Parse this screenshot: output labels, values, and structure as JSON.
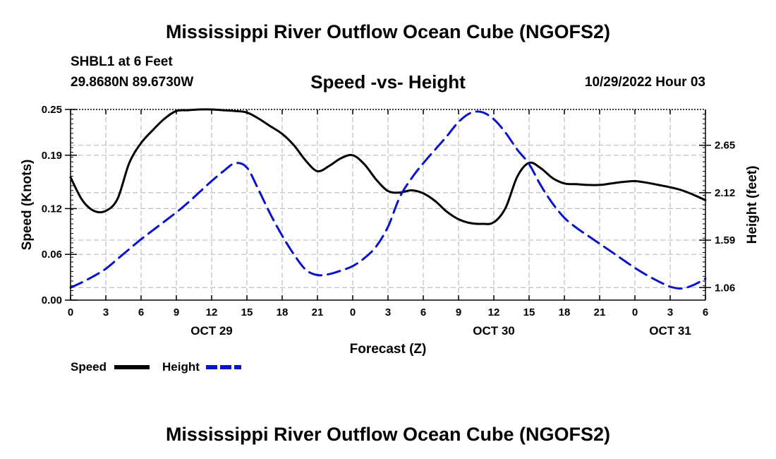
{
  "header": {
    "title": "Mississippi River Outflow Ocean Cube (NGOFS2)",
    "station": "SHBL1 at 6 Feet",
    "coords": "29.8680N  89.6730W",
    "subtitle": "Speed -vs- Height",
    "datetime": "10/29/2022 Hour 03"
  },
  "footer": {
    "title": "Mississippi River Outflow Ocean Cube (NGOFS2)"
  },
  "chart_data": {
    "type": "line",
    "title": "Speed -vs- Height",
    "xlabel": "Forecast (Z)",
    "ylabel": "Speed (Knots)",
    "y2label": "Height (feet)",
    "xlim": [
      0,
      54
    ],
    "ylim": [
      0,
      0.25
    ],
    "y2lim": [
      0.92,
      3.05
    ],
    "x_tick_values": [
      0,
      3,
      6,
      9,
      12,
      15,
      18,
      21,
      24,
      27,
      30,
      33,
      36,
      39,
      42,
      45,
      48,
      51,
      54
    ],
    "x_tick_labels": [
      "0",
      "3",
      "6",
      "9",
      "12",
      "15",
      "18",
      "21",
      "0",
      "3",
      "6",
      "9",
      "12",
      "15",
      "18",
      "21",
      "0",
      "3",
      "6"
    ],
    "date_labels": [
      {
        "x": 12,
        "label": "OCT 29"
      },
      {
        "x": 36,
        "label": "OCT 30"
      },
      {
        "x": 51,
        "label": "OCT 31"
      }
    ],
    "y_ticks": [
      0.0,
      0.06,
      0.12,
      0.19,
      0.25
    ],
    "y_tick_labels": [
      "0.00",
      "0.06",
      "0.12",
      "0.19",
      "0.25"
    ],
    "y2_ticks": [
      1.06,
      1.59,
      2.12,
      2.65
    ],
    "y2_tick_labels": [
      "1.06",
      "1.59",
      "2.12",
      "2.65"
    ],
    "grid": true,
    "legend": {
      "position": "bottom-left"
    },
    "series": [
      {
        "name": "Speed",
        "axis": "left",
        "color": "#000000",
        "dash": "solid",
        "x": [
          0,
          1,
          2,
          3,
          4,
          5,
          6,
          7,
          8,
          9,
          10,
          11,
          12,
          13,
          14,
          15,
          16,
          17,
          18,
          19,
          20,
          21,
          22,
          23,
          24,
          25,
          26,
          27,
          28,
          29,
          30,
          31,
          32,
          33,
          34,
          35,
          36,
          37,
          38,
          39,
          40,
          41,
          42,
          43,
          44,
          45,
          46,
          47,
          48,
          49,
          50,
          51,
          52,
          53,
          54
        ],
        "values": [
          0.161,
          0.131,
          0.117,
          0.117,
          0.133,
          0.18,
          0.206,
          0.223,
          0.238,
          0.248,
          0.249,
          0.25,
          0.25,
          0.249,
          0.248,
          0.246,
          0.238,
          0.228,
          0.218,
          0.203,
          0.183,
          0.169,
          0.176,
          0.186,
          0.19,
          0.178,
          0.158,
          0.143,
          0.141,
          0.144,
          0.14,
          0.13,
          0.116,
          0.106,
          0.101,
          0.1,
          0.102,
          0.121,
          0.162,
          0.18,
          0.173,
          0.16,
          0.153,
          0.152,
          0.151,
          0.151,
          0.153,
          0.155,
          0.156,
          0.154,
          0.151,
          0.148,
          0.144,
          0.138,
          0.131
        ]
      },
      {
        "name": "Height",
        "axis": "right",
        "color": "#0a14c8",
        "dash": "dashed",
        "x": [
          0,
          1,
          2,
          3,
          4,
          5,
          6,
          7,
          8,
          9,
          10,
          11,
          12,
          13,
          14,
          15,
          16,
          17,
          18,
          19,
          20,
          21,
          22,
          23,
          24,
          25,
          26,
          27,
          28,
          29,
          30,
          31,
          32,
          33,
          34,
          35,
          36,
          37,
          38,
          39,
          40,
          41,
          42,
          43,
          44,
          45,
          46,
          47,
          48,
          49,
          50,
          51,
          52,
          53,
          54
        ],
        "values": [
          1.06,
          1.12,
          1.19,
          1.27,
          1.38,
          1.49,
          1.6,
          1.7,
          1.8,
          1.9,
          2.01,
          2.13,
          2.25,
          2.36,
          2.45,
          2.4,
          2.15,
          1.88,
          1.64,
          1.43,
          1.26,
          1.2,
          1.21,
          1.25,
          1.3,
          1.39,
          1.52,
          1.74,
          2.07,
          2.28,
          2.45,
          2.6,
          2.75,
          2.91,
          3.01,
          3.02,
          2.94,
          2.79,
          2.6,
          2.44,
          2.2,
          2.0,
          1.84,
          1.73,
          1.64,
          1.55,
          1.46,
          1.37,
          1.28,
          1.2,
          1.13,
          1.07,
          1.05,
          1.09,
          1.16
        ]
      }
    ]
  }
}
